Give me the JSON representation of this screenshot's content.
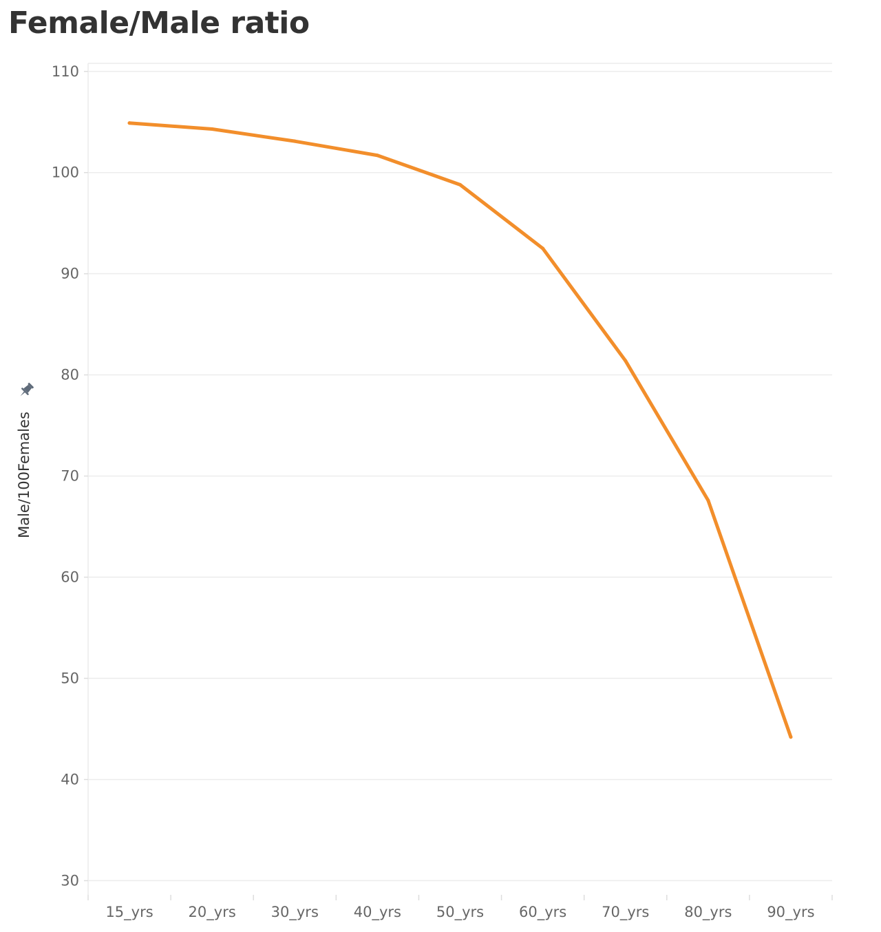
{
  "chart_data": {
    "type": "line",
    "title": "Female/Male ratio",
    "xlabel": "",
    "ylabel": "Male/100Females",
    "categories": [
      "15_yrs",
      "20_yrs",
      "30_yrs",
      "40_yrs",
      "50_yrs",
      "60_yrs",
      "70_yrs",
      "80_yrs",
      "90_yrs"
    ],
    "series": [
      {
        "values": [
          104.9,
          104.3,
          103.1,
          101.7,
          98.8,
          92.5,
          81.4,
          67.6,
          44.2
        ]
      }
    ],
    "yticks": [
      30,
      40,
      50,
      60,
      70,
      80,
      90,
      100,
      110
    ],
    "ylim": [
      28.6,
      110.8
    ],
    "grid": true,
    "legend": "none",
    "colors": {
      "line": "#f28e2b",
      "gridline": "#ececec",
      "tick_label": "#666666",
      "axis_title": "#333333",
      "pin_icon": "#5f6b7a"
    },
    "icons": {
      "axis_title": "pin-icon"
    }
  }
}
